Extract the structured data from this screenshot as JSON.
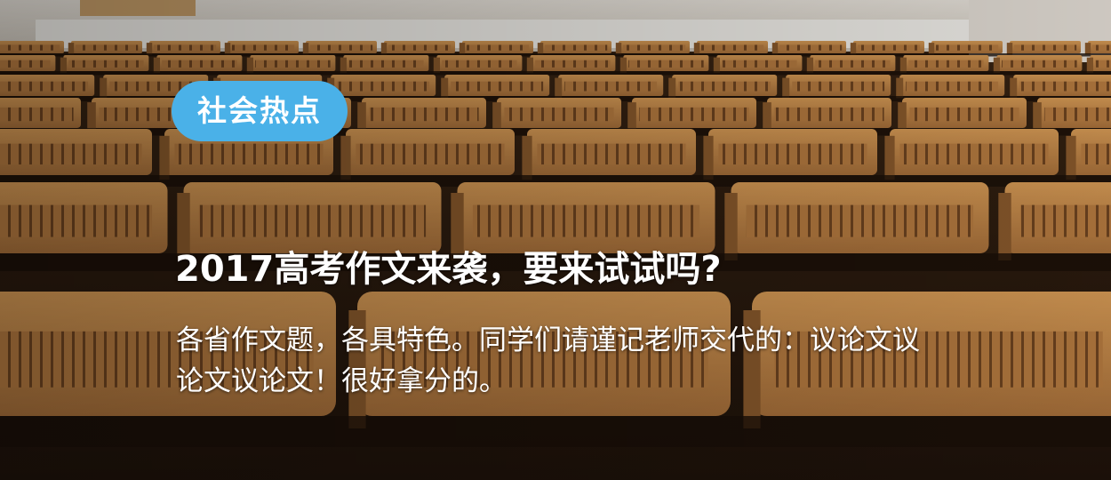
{
  "banner": {
    "tag_label": "社会热点",
    "title": "2017高考作文来袭，要来试试吗?",
    "description": "各省作文题，各具特色。同学们请谨记老师交代的：议论文议论文议论文！很好拿分的。",
    "colors": {
      "tag_background": "#4ab1e8",
      "text": "#ffffff",
      "seat_wood": "#c68a48",
      "floor_dark": "#2a1a0d"
    },
    "background_image": "lecture-hall-wooden-seats"
  }
}
